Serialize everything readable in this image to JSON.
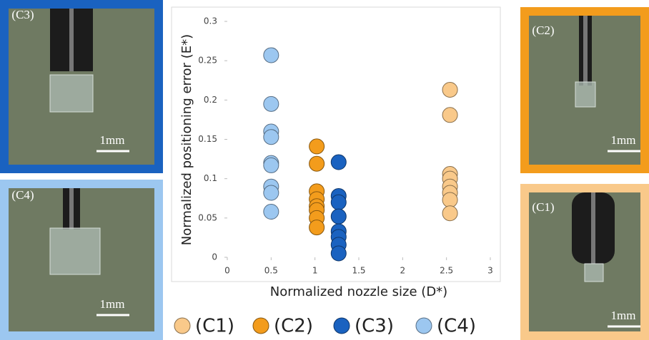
{
  "chart_data": {
    "type": "scatter",
    "xlabel": "Normalized nozzle size (D*)",
    "ylabel": "Normalized positioning error (E*)",
    "xlim": [
      0,
      3
    ],
    "xticks": [
      0,
      0.5,
      1,
      1.5,
      2,
      2.5,
      3
    ],
    "ylim": [
      0,
      0.3
    ],
    "yticks": [
      0,
      0.05,
      0.1,
      0.15,
      0.2,
      0.25,
      0.3
    ],
    "grid": false,
    "legend": "bottom",
    "series": [
      {
        "name": "(C1)",
        "color": "#f9c98a",
        "x": [
          2.54,
          2.54,
          2.54,
          2.54,
          2.54,
          2.54,
          2.54,
          2.54
        ],
        "values": [
          0.213,
          0.181,
          0.106,
          0.1,
          0.09,
          0.082,
          0.073,
          0.056
        ]
      },
      {
        "name": "(C2)",
        "color": "#f39c1c",
        "x": [
          1.02,
          1.02,
          1.02,
          1.02,
          1.02,
          1.02,
          1.02,
          1.02
        ],
        "values": [
          0.141,
          0.119,
          0.084,
          0.074,
          0.065,
          0.06,
          0.05,
          0.038
        ]
      },
      {
        "name": "(C3)",
        "color": "#1a62c0",
        "x": [
          1.27,
          1.27,
          1.27,
          1.27,
          1.27,
          1.27,
          1.27,
          1.27
        ],
        "values": [
          0.121,
          0.078,
          0.07,
          0.052,
          0.033,
          0.026,
          0.016,
          0.005
        ]
      },
      {
        "name": "(C4)",
        "color": "#9cc7f0",
        "x": [
          0.5,
          0.5,
          0.5,
          0.5,
          0.5,
          0.5,
          0.5,
          0.5,
          0.5
        ],
        "values": [
          0.257,
          0.195,
          0.16,
          0.153,
          0.12,
          0.117,
          0.09,
          0.082,
          0.058
        ]
      }
    ]
  },
  "panels": [
    {
      "label": "(C3)",
      "scale": "1mm"
    },
    {
      "label": "(C4)",
      "scale": "1mm"
    },
    {
      "label": "(C2)",
      "scale": "1mm"
    },
    {
      "label": "(C1)",
      "scale": "1mm"
    }
  ]
}
